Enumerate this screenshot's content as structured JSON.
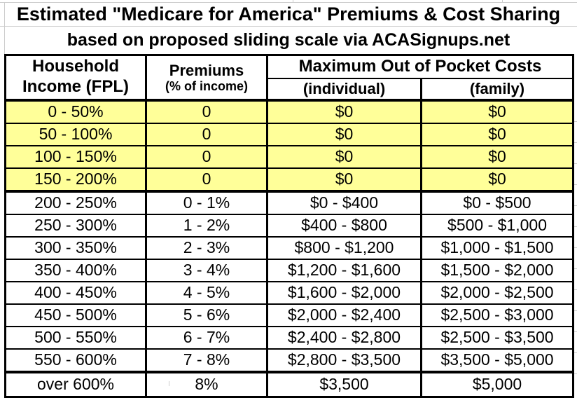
{
  "chart_data": {
    "type": "table",
    "title": "Estimated \"Medicare for America\" Premiums & Cost Sharing",
    "subtitle": "based on proposed sliding scale via ACASignups.net",
    "columns": [
      "Household Income (FPL)",
      "Premiums (% of income)",
      "Maximum Out of Pocket Costs (individual)",
      "Maximum Out of Pocket Costs (family)"
    ],
    "rows": [
      {
        "income": "0 - 50%",
        "premium": "0",
        "individual": "$0",
        "family": "$0",
        "group": "no-cost",
        "highlight": true
      },
      {
        "income": "50 - 100%",
        "premium": "0",
        "individual": "$0",
        "family": "$0",
        "group": "no-cost",
        "highlight": true
      },
      {
        "income": "100 - 150%",
        "premium": "0",
        "individual": "$0",
        "family": "$0",
        "group": "no-cost",
        "highlight": true
      },
      {
        "income": "150 - 200%",
        "premium": "0",
        "individual": "$0",
        "family": "$0",
        "group": "no-cost",
        "highlight": true
      },
      {
        "income": "200 - 250%",
        "premium": "0 - 1%",
        "individual": "$0 - $400",
        "family": "$0 - $500",
        "group": "sliding",
        "highlight": false
      },
      {
        "income": "250 - 300%",
        "premium": "1 - 2%",
        "individual": "$400 - $800",
        "family": "$500 - $1,000",
        "group": "sliding",
        "highlight": false
      },
      {
        "income": "300 - 350%",
        "premium": "2 - 3%",
        "individual": "$800 - $1,200",
        "family": "$1,000 - $1,500",
        "group": "sliding",
        "highlight": false
      },
      {
        "income": "350 - 400%",
        "premium": "3 - 4%",
        "individual": "$1,200 - $1,600",
        "family": "$1,500 - $2,000",
        "group": "sliding",
        "highlight": false
      },
      {
        "income": "400 - 450%",
        "premium": "4 - 5%",
        "individual": "$1,600 - $2,000",
        "family": "$2,000 - $2,500",
        "group": "sliding",
        "highlight": false
      },
      {
        "income": "450 - 500%",
        "premium": "5 - 6%",
        "individual": "$2,000 - $2,400",
        "family": "$2,500 - $3,000",
        "group": "sliding",
        "highlight": false
      },
      {
        "income": "500 - 550%",
        "premium": "6 - 7%",
        "individual": "$2,400 - $2,800",
        "family": "$2,500 - $3,500",
        "group": "sliding",
        "highlight": false
      },
      {
        "income": "550 - 600%",
        "premium": "7 - 8%",
        "individual": "$2,800 - $3,500",
        "family": "$3,500 - $5,000",
        "group": "sliding",
        "highlight": false
      },
      {
        "income": "over 600%",
        "premium": "8%",
        "individual": "$3,500",
        "family": "$5,000",
        "group": "cap",
        "highlight": false
      }
    ]
  },
  "header": {
    "income_line1": "Household",
    "income_line2": "Income (FPL)",
    "premiums_line1": "Premiums",
    "premiums_line2": "(% of income)",
    "moop": "Maximum Out of Pocket Costs",
    "individual": "(individual)",
    "family": "(family)"
  },
  "colors": {
    "highlight_row": "#FFFF99",
    "border": "#000000",
    "gridline": "#CCCCCC",
    "text": "#000000"
  }
}
